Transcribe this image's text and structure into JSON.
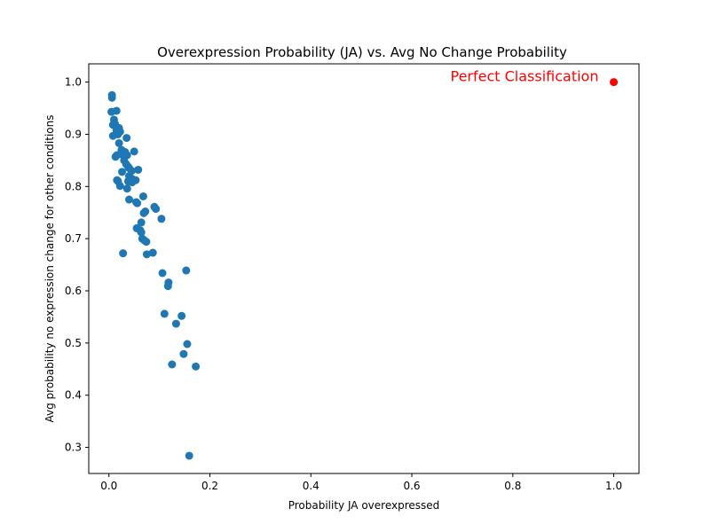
{
  "chart_data": {
    "type": "scatter",
    "title": "Overexpression Probability (JA) vs. Avg No Change Probability",
    "xlabel": "Probability JA overexpressed",
    "ylabel": "Avg probability no expression change for other conditions",
    "xlim": [
      -0.04,
      1.05
    ],
    "ylim": [
      0.25,
      1.035
    ],
    "xticks": [
      0.0,
      0.2,
      0.4,
      0.6,
      0.8,
      1.0
    ],
    "xtick_labels": [
      "0.0",
      "0.2",
      "0.4",
      "0.6",
      "0.8",
      "1.0"
    ],
    "yticks": [
      0.3,
      0.4,
      0.5,
      0.6,
      0.7,
      0.8,
      0.9,
      1.0
    ],
    "ytick_labels": [
      "0.3",
      "0.4",
      "0.5",
      "0.6",
      "0.7",
      "0.8",
      "0.9",
      "1.0"
    ],
    "grid": false,
    "colors": {
      "points": "#1f77b4",
      "perfect": "#ff0000"
    },
    "series": [
      {
        "color": "#1f77b4",
        "points": [
          [
            0.006,
            0.975
          ],
          [
            0.006,
            0.97
          ],
          [
            0.005,
            0.943
          ],
          [
            0.015,
            0.945
          ],
          [
            0.008,
            0.918
          ],
          [
            0.01,
            0.928
          ],
          [
            0.012,
            0.92
          ],
          [
            0.02,
            0.912
          ],
          [
            0.022,
            0.905
          ],
          [
            0.008,
            0.897
          ],
          [
            0.018,
            0.9
          ],
          [
            0.035,
            0.893
          ],
          [
            0.015,
            0.908
          ],
          [
            0.02,
            0.883
          ],
          [
            0.025,
            0.87
          ],
          [
            0.032,
            0.866
          ],
          [
            0.036,
            0.86
          ],
          [
            0.05,
            0.867
          ],
          [
            0.028,
            0.86
          ],
          [
            0.016,
            0.86
          ],
          [
            0.013,
            0.857
          ],
          [
            0.03,
            0.85
          ],
          [
            0.034,
            0.843
          ],
          [
            0.038,
            0.838
          ],
          [
            0.04,
            0.835
          ],
          [
            0.045,
            0.83
          ],
          [
            0.058,
            0.832
          ],
          [
            0.026,
            0.828
          ],
          [
            0.04,
            0.82
          ],
          [
            0.045,
            0.815
          ],
          [
            0.053,
            0.812
          ],
          [
            0.038,
            0.81
          ],
          [
            0.016,
            0.812
          ],
          [
            0.018,
            0.81
          ],
          [
            0.046,
            0.808
          ],
          [
            0.022,
            0.801
          ],
          [
            0.036,
            0.796
          ],
          [
            0.068,
            0.781
          ],
          [
            0.04,
            0.775
          ],
          [
            0.054,
            0.77
          ],
          [
            0.056,
            0.768
          ],
          [
            0.09,
            0.761
          ],
          [
            0.093,
            0.757
          ],
          [
            0.072,
            0.752
          ],
          [
            0.069,
            0.749
          ],
          [
            0.104,
            0.738
          ],
          [
            0.064,
            0.731
          ],
          [
            0.055,
            0.72
          ],
          [
            0.062,
            0.716
          ],
          [
            0.064,
            0.712
          ],
          [
            0.066,
            0.7
          ],
          [
            0.07,
            0.697
          ],
          [
            0.074,
            0.694
          ],
          [
            0.028,
            0.672
          ],
          [
            0.075,
            0.67
          ],
          [
            0.087,
            0.673
          ],
          [
            0.153,
            0.639
          ],
          [
            0.106,
            0.634
          ],
          [
            0.118,
            0.616
          ],
          [
            0.117,
            0.609
          ],
          [
            0.11,
            0.556
          ],
          [
            0.144,
            0.552
          ],
          [
            0.133,
            0.537
          ],
          [
            0.155,
            0.498
          ],
          [
            0.148,
            0.479
          ],
          [
            0.125,
            0.459
          ],
          [
            0.172,
            0.455
          ],
          [
            0.159,
            0.284
          ]
        ]
      },
      {
        "color": "#ff0000",
        "points": [
          [
            1.0,
            1.0
          ]
        ]
      }
    ],
    "annotations": [
      {
        "text": "Perfect Classification",
        "x": 0.97,
        "y": 1.0
      }
    ]
  }
}
